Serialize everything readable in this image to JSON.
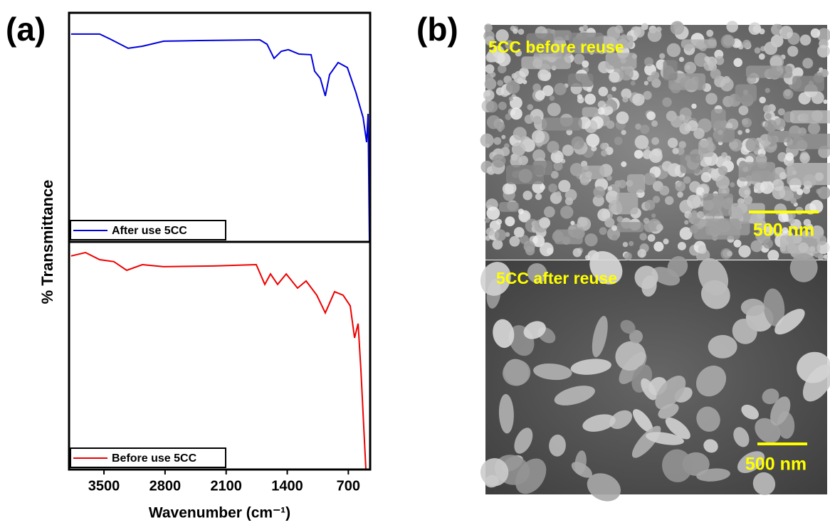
{
  "panel_labels": [
    "(a)",
    "(b)"
  ],
  "chart_data": [
    {
      "type": "line",
      "ylabel": "% Transmittance",
      "xlim": [
        3900,
        450
      ],
      "ylim": [
        0,
        100
      ],
      "legend": "lower left",
      "series": [
        {
          "name": "After use 5CC",
          "color": "#0000dd",
          "x": [
            3876,
            3549,
            3427,
            3223,
            3060,
            2815,
            2407,
            1714,
            1632,
            1551,
            1469,
            1388,
            1265,
            1127,
            1086,
            1021,
            964,
            915,
            817,
            711,
            613,
            531,
            491,
            474,
            458
          ],
          "values": [
            90.7,
            90.7,
            88.5,
            84.5,
            85.4,
            87.6,
            87.9,
            88.2,
            86.3,
            80.1,
            83.2,
            83.9,
            82.0,
            81.7,
            74.5,
            71.4,
            63.7,
            73.0,
            78.3,
            76.1,
            65.2,
            54.3,
            43.5,
            55.9,
            0
          ]
        }
      ]
    },
    {
      "type": "line",
      "xlabel": "Wavenumber (cm⁻¹)",
      "xlim": [
        3900,
        450
      ],
      "ylim": [
        0,
        100
      ],
      "legend": "lower left",
      "xticks": [
        3500,
        2800,
        2100,
        1400,
        700
      ],
      "series": [
        {
          "name": "Before use 5CC",
          "color": "#ee0000",
          "x": [
            3876,
            3712,
            3549,
            3386,
            3239,
            3060,
            2815,
            2244,
            1755,
            1657,
            1592,
            1510,
            1412,
            1282,
            1184,
            1062,
            964,
            858,
            760,
            678,
            629,
            588,
            556,
            499
          ],
          "values": [
            93.8,
            95.3,
            92.2,
            91.3,
            87.5,
            90.0,
            89.1,
            89.4,
            90.0,
            81.3,
            85.9,
            81.3,
            85.9,
            79.7,
            82.8,
            76.6,
            68.8,
            78.1,
            76.6,
            71.9,
            57.8,
            64.1,
            43.8,
            0
          ]
        }
      ]
    }
  ],
  "images": [
    {
      "caption": "5CC before reuse",
      "scale_bar": "500 nm"
    },
    {
      "caption": "5CC after reuse",
      "scale_bar": "500 nm"
    }
  ]
}
